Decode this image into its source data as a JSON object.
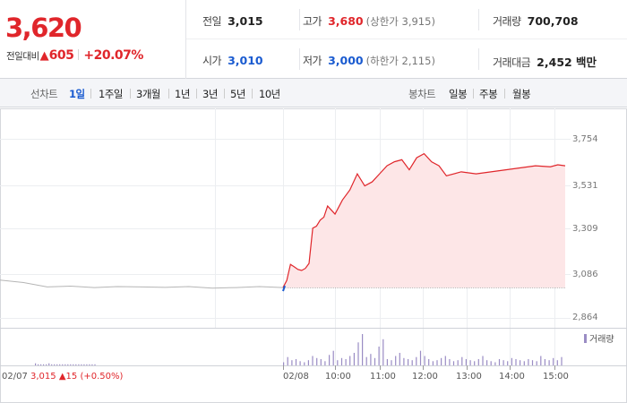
{
  "summary": {
    "price": "3,620",
    "change_label": "전일대비",
    "change_arrow": "▲",
    "change_amount": "605",
    "change_rate": "+20.07%"
  },
  "stats": {
    "prev_close": {
      "label": "전일",
      "value": "3,015"
    },
    "high": {
      "label": "고가",
      "value": "3,680",
      "sub": "(상한가 3,915)"
    },
    "volume": {
      "label": "거래량",
      "value": "700,708"
    },
    "open": {
      "label": "시가",
      "value": "3,010"
    },
    "low": {
      "label": "저가",
      "value": "3,000",
      "sub": "(하한가 2,115)"
    },
    "trade_value": {
      "label": "거래대금",
      "value": "2,452 백만"
    }
  },
  "line_chart_bar": {
    "label": "선차트",
    "periods": [
      "1일",
      "1주일",
      "3개월",
      "1년",
      "3년",
      "5년",
      "10년"
    ],
    "active": "1일"
  },
  "candle_chart_bar": {
    "label": "봉차트",
    "periods": [
      "일봉",
      "주봉",
      "월봉"
    ]
  },
  "colors": {
    "up": "#e0262b",
    "down": "#1a5bd0",
    "line": "#e0262b",
    "fill": "#fde6e7",
    "prev_line": "#b5b5b5",
    "volume": "#9a8cc4"
  },
  "chart_data": {
    "type": "area",
    "ylim": [
      2864,
      3754
    ],
    "yticks": [
      "3,754",
      "3,531",
      "3,309",
      "3,086",
      "2,864"
    ],
    "xticks": [
      "02/08",
      "10:00",
      "11:00",
      "12:00",
      "13:00",
      "14:00",
      "15:00"
    ],
    "prev_day_label": "02/07",
    "prev_day_close": "3,015",
    "prev_day_change": "▲15 (+0.50%)",
    "volume_legend": "거래량",
    "prev_day_series": {
      "x": [
        0,
        0.5,
        1,
        1.5,
        2,
        2.5,
        3,
        3.5,
        4,
        4.5,
        5,
        5.5,
        6
      ],
      "y": [
        3052,
        3040,
        3018,
        3022,
        3015,
        3020,
        3018,
        3016,
        3020,
        3012,
        3015,
        3020,
        3015
      ]
    },
    "today_series": {
      "time": [
        "09:00",
        "09:05",
        "09:10",
        "09:15",
        "09:20",
        "09:25",
        "09:30",
        "09:35",
        "09:40",
        "09:45",
        "09:50",
        "09:55",
        "10:00",
        "10:10",
        "10:20",
        "10:30",
        "10:40",
        "10:50",
        "11:00",
        "11:10",
        "11:20",
        "11:30",
        "11:40",
        "11:50",
        "12:00",
        "12:10",
        "12:20",
        "12:30",
        "12:40",
        "13:00",
        "13:20",
        "13:40",
        "14:00",
        "14:20",
        "14:40",
        "15:00",
        "15:10",
        "15:20"
      ],
      "y": [
        3015,
        3050,
        3130,
        3118,
        3105,
        3100,
        3110,
        3135,
        3310,
        3320,
        3350,
        3365,
        3420,
        3380,
        3450,
        3500,
        3580,
        3520,
        3540,
        3580,
        3620,
        3640,
        3650,
        3600,
        3660,
        3680,
        3640,
        3620,
        3570,
        3590,
        3580,
        3590,
        3600,
        3610,
        3620,
        3615,
        3625,
        3620
      ]
    },
    "volume_bars": [
      2,
      1,
      1,
      1,
      1,
      2,
      1,
      1,
      1,
      1,
      1,
      1,
      1,
      1,
      1,
      1,
      1,
      1,
      1,
      1,
      1,
      1,
      1,
      3,
      8,
      5,
      6,
      4,
      3,
      5,
      9,
      7,
      6,
      4,
      10,
      14,
      5,
      7,
      6,
      9,
      12,
      22,
      30,
      8,
      11,
      7,
      18,
      25,
      6,
      5,
      9,
      12,
      7,
      6,
      5,
      8,
      14,
      9,
      6,
      4,
      5,
      7,
      9,
      6,
      4,
      5,
      8,
      6,
      5,
      4,
      6,
      9,
      5,
      4,
      3,
      6,
      5,
      4,
      7,
      6,
      5,
      4,
      6,
      5,
      4,
      9,
      6,
      5,
      7,
      5,
      8
    ]
  }
}
